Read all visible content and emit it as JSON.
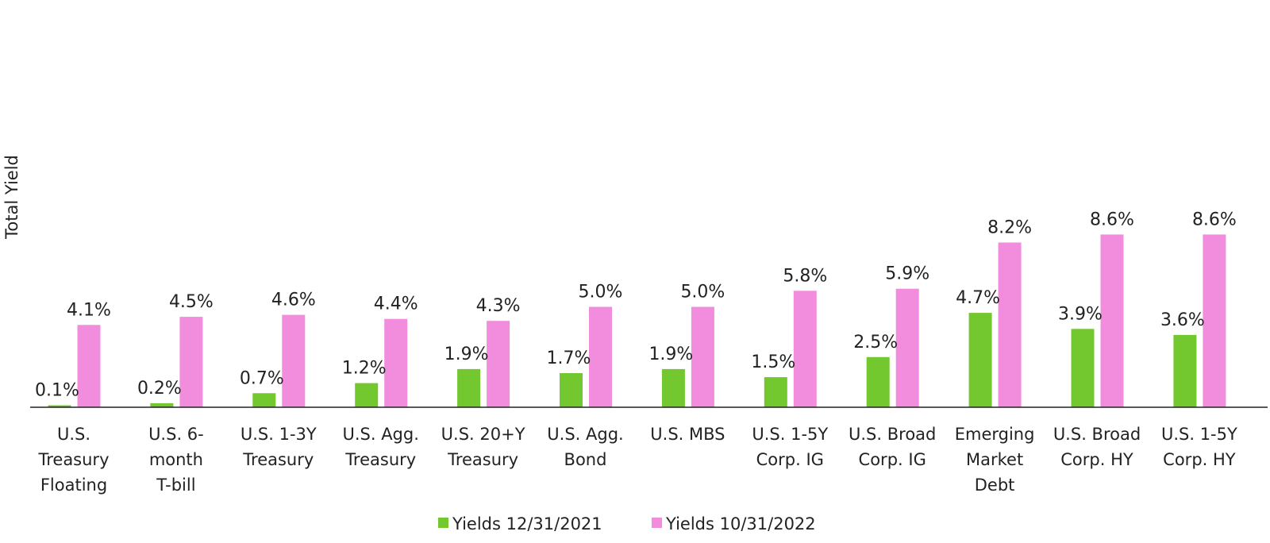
{
  "chart_data": {
    "type": "bar",
    "title": "",
    "xlabel": "",
    "ylabel": "Total Yield",
    "ylim": [
      0,
      9
    ],
    "grid": false,
    "legend_position": "bottom",
    "categories": [
      [
        "U.S.",
        "Treasury",
        "Floating"
      ],
      [
        "U.S. 6-",
        "month",
        "T-bill"
      ],
      [
        "U.S. 1-3Y",
        "Treasury"
      ],
      [
        "U.S. Agg.",
        "Treasury"
      ],
      [
        "U.S. 20+Y",
        "Treasury"
      ],
      [
        "U.S. Agg.",
        "Bond"
      ],
      [
        "U.S. MBS"
      ],
      [
        "U.S. 1-5Y",
        "Corp. IG"
      ],
      [
        "U.S. Broad",
        "Corp. IG"
      ],
      [
        "Emerging",
        "Market",
        "Debt"
      ],
      [
        "U.S. Broad",
        "Corp. HY"
      ],
      [
        "U.S. 1-5Y",
        "Corp. HY"
      ]
    ],
    "series": [
      {
        "name": "Yields 12/31/2021",
        "color": "#73c72f",
        "values": [
          0.1,
          0.2,
          0.7,
          1.2,
          1.9,
          1.7,
          1.9,
          1.5,
          2.5,
          4.7,
          3.9,
          3.6
        ],
        "labels": [
          "0.1%",
          "0.2%",
          "0.7%",
          "1.2%",
          "1.9%",
          "1.7%",
          "1.9%",
          "1.5%",
          "2.5%",
          "4.7%",
          "3.9%",
          "3.6%"
        ]
      },
      {
        "name": "Yields 10/31/2022",
        "color": "#f28cdc",
        "values": [
          4.1,
          4.5,
          4.6,
          4.4,
          4.3,
          5.0,
          5.0,
          5.8,
          5.9,
          8.2,
          8.6,
          8.6
        ],
        "labels": [
          "4.1%",
          "4.5%",
          "4.6%",
          "4.4%",
          "4.3%",
          "5.0%",
          "5.0%",
          "5.8%",
          "5.9%",
          "8.2%",
          "8.6%",
          "8.6%"
        ]
      }
    ]
  }
}
